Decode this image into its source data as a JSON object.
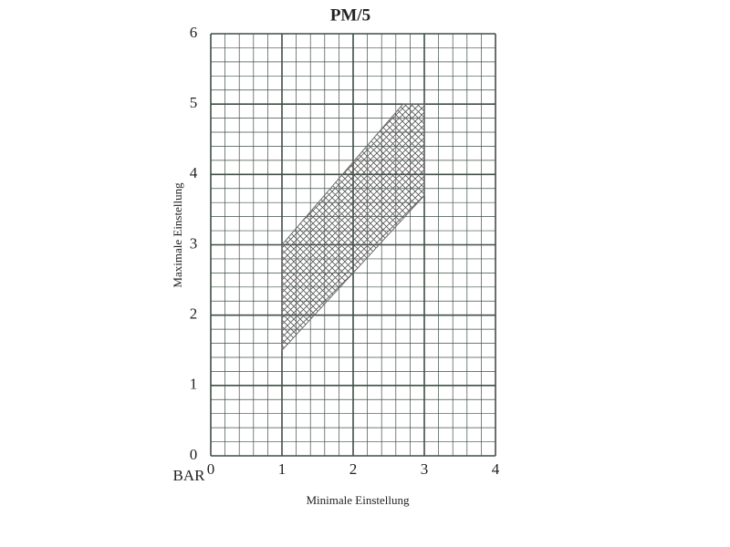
{
  "chart_data": {
    "type": "area",
    "title": "PM/5",
    "x_label": "Minimale Einstellung",
    "y_label": "Maximale Einstellung",
    "unit_label": "BAR",
    "series": [
      {
        "x": [
          1,
          1,
          2.7,
          3,
          3
        ],
        "values": [
          1.5,
          3,
          5,
          5,
          3.7
        ],
        "color": "#6a6a6a"
      }
    ],
    "xlim": [
      0,
      4
    ],
    "xticks": [
      0,
      1,
      2,
      3,
      4
    ],
    "ylim": [
      0,
      6
    ],
    "yticks": [
      0,
      1,
      2,
      3,
      4,
      5,
      6
    ],
    "grid": true,
    "grid_color": "#3f4f45"
  }
}
